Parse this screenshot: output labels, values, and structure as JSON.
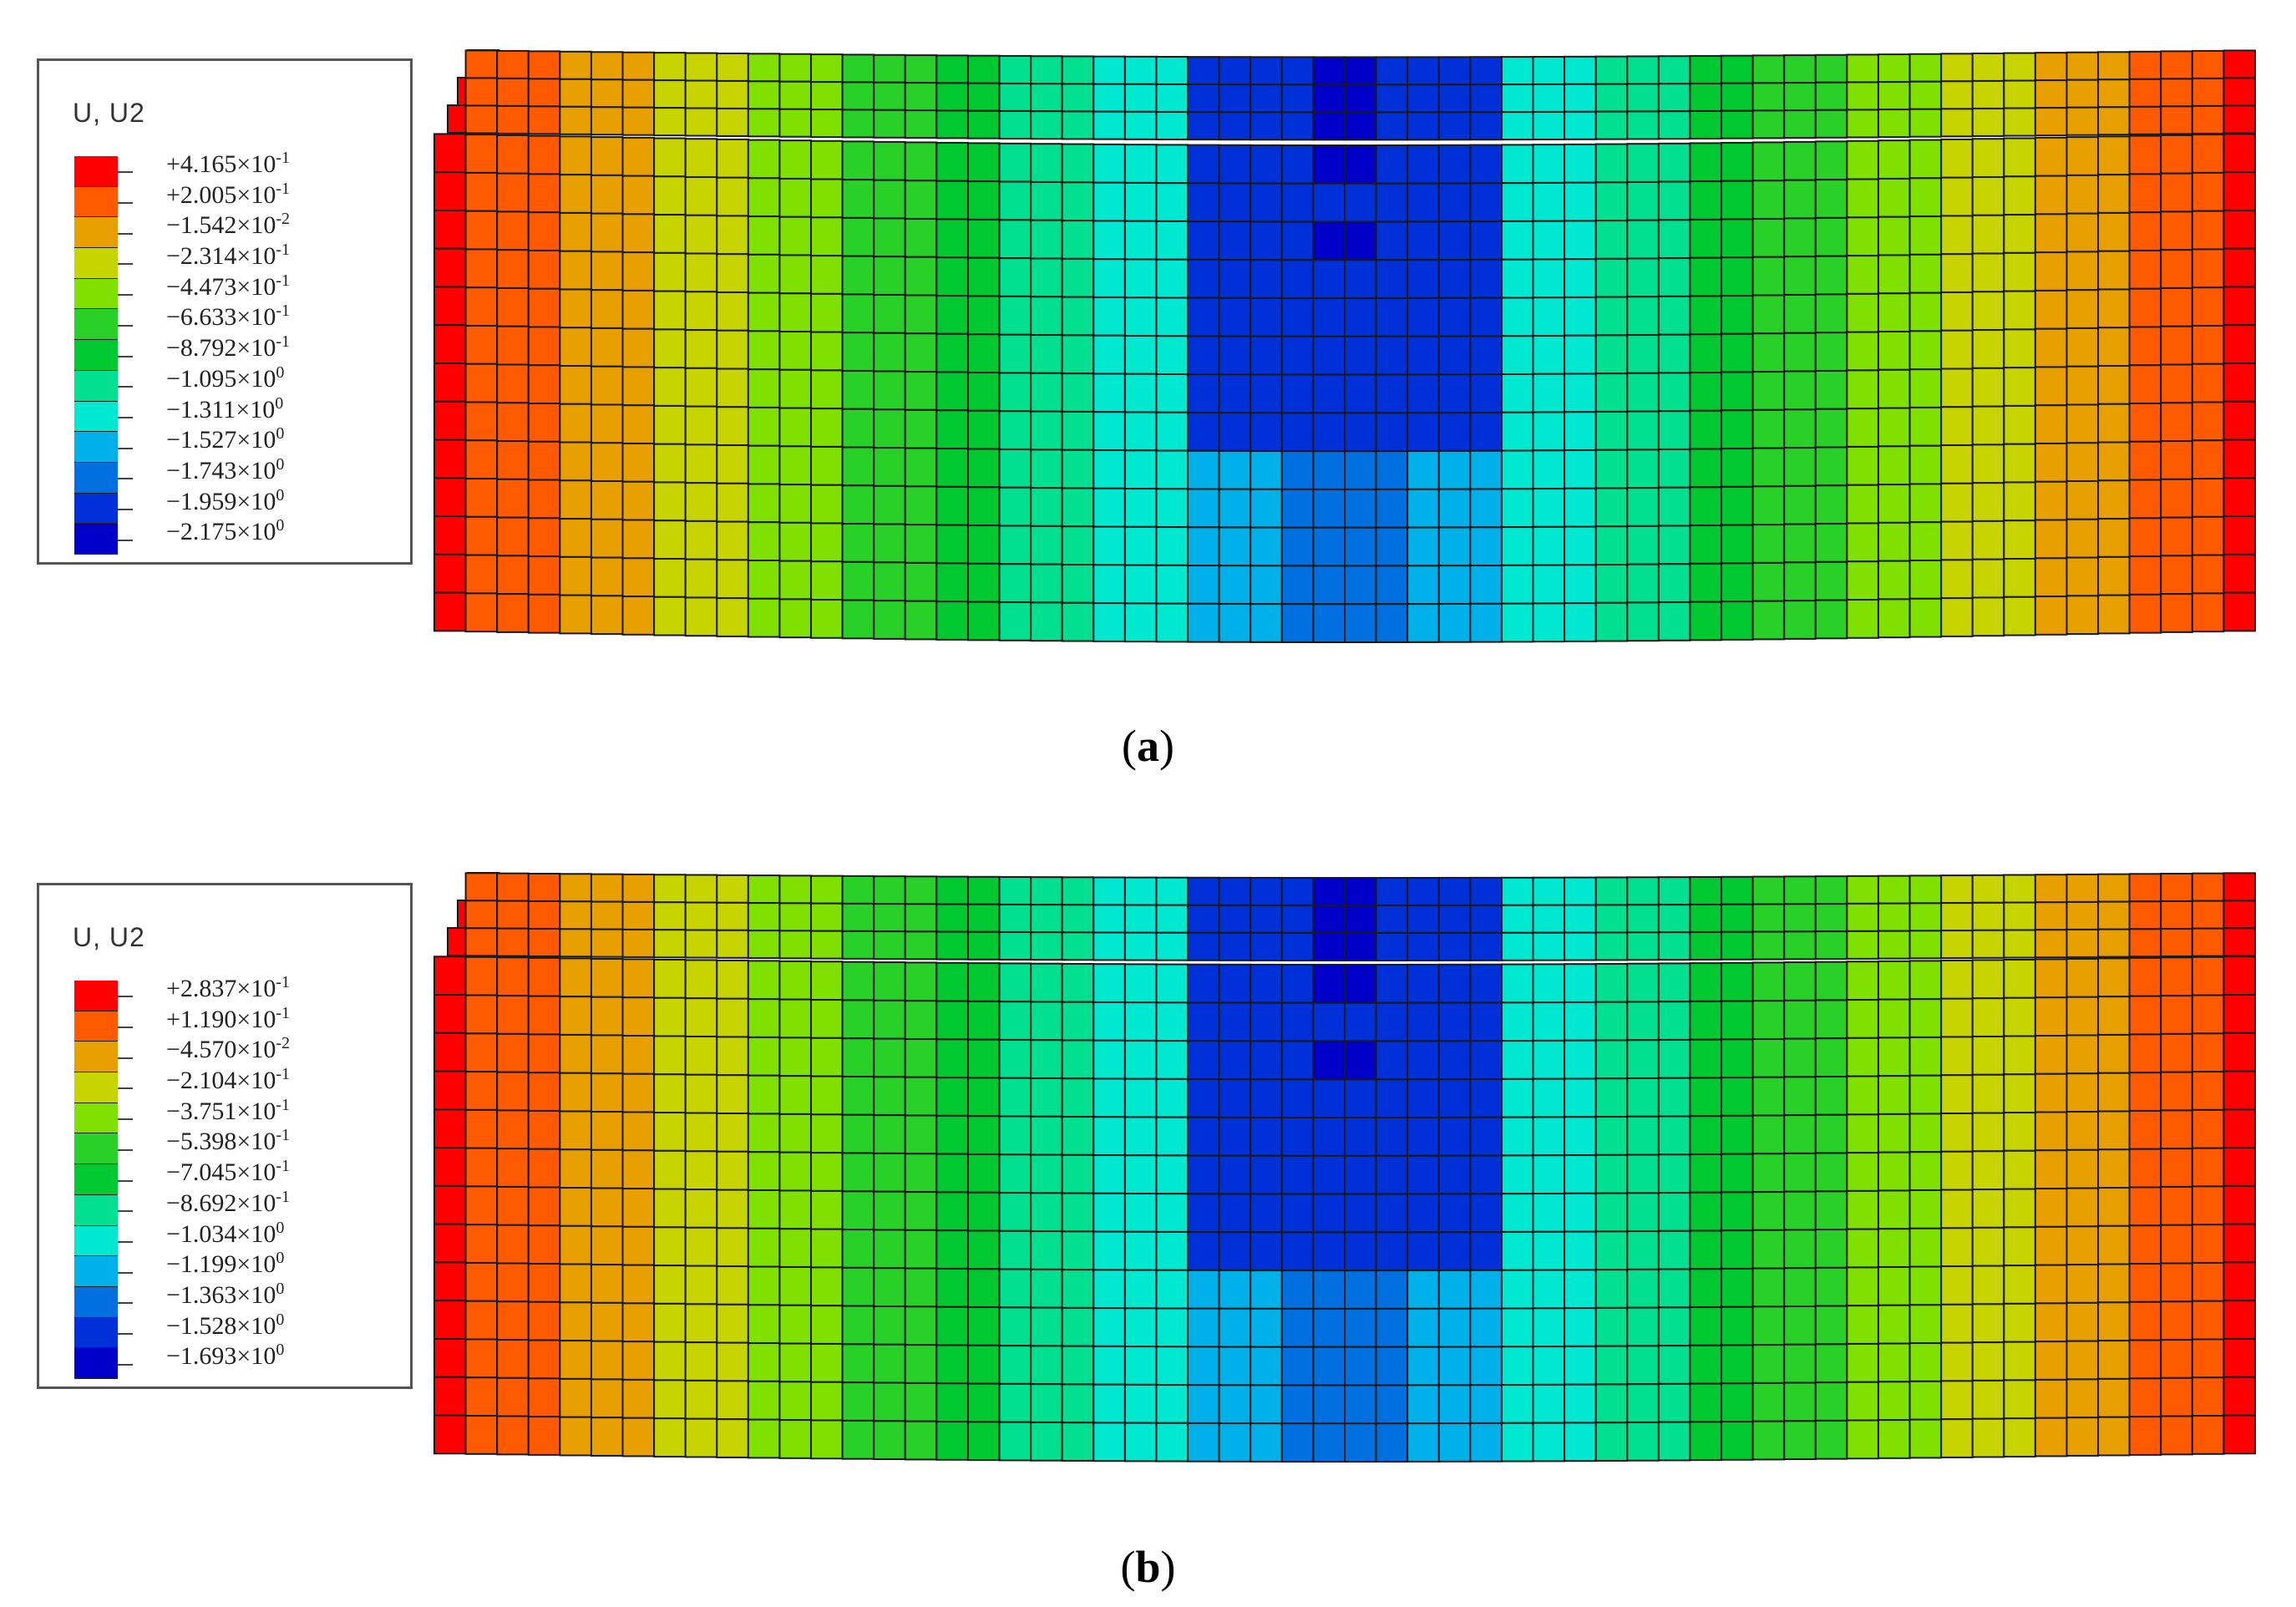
{
  "panels": [
    {
      "id": "a",
      "caption_letter": "a",
      "legend_title": "U, U2",
      "legend_colors": [
        "#ff0000",
        "#ff5a00",
        "#e8a000",
        "#c8d400",
        "#80e000",
        "#28d028",
        "#00c830",
        "#00e090",
        "#00e8d0",
        "#00b0e8",
        "#0070e0",
        "#0030d8",
        "#0000c8"
      ],
      "legend_values": [
        {
          "mantissa": "+4.165",
          "exponent": "-1"
        },
        {
          "mantissa": "+2.005",
          "exponent": "-1"
        },
        {
          "mantissa": "−1.542",
          "exponent": "-2"
        },
        {
          "mantissa": "−2.314",
          "exponent": "-1"
        },
        {
          "mantissa": "−4.473",
          "exponent": "-1"
        },
        {
          "mantissa": "−6.633",
          "exponent": "-1"
        },
        {
          "mantissa": "−8.792",
          "exponent": "-1"
        },
        {
          "mantissa": "−1.095",
          "exponent": "0"
        },
        {
          "mantissa": "−1.311",
          "exponent": "0"
        },
        {
          "mantissa": "−1.527",
          "exponent": "0"
        },
        {
          "mantissa": "−1.743",
          "exponent": "0"
        },
        {
          "mantissa": "−1.959",
          "exponent": "0"
        },
        {
          "mantissa": "−2.175",
          "exponent": "0"
        }
      ]
    },
    {
      "id": "b",
      "caption_letter": "b",
      "legend_title": "U, U2",
      "legend_colors": [
        "#ff0000",
        "#ff5a00",
        "#e8a000",
        "#c8d400",
        "#80e000",
        "#28d028",
        "#00c830",
        "#00e090",
        "#00e8d0",
        "#00b0e8",
        "#0070e0",
        "#0030d8",
        "#0000c8"
      ],
      "legend_values": [
        {
          "mantissa": "+2.837",
          "exponent": "-1"
        },
        {
          "mantissa": "+1.190",
          "exponent": "-1"
        },
        {
          "mantissa": "−4.570",
          "exponent": "-2"
        },
        {
          "mantissa": "−2.104",
          "exponent": "-1"
        },
        {
          "mantissa": "−3.751",
          "exponent": "-1"
        },
        {
          "mantissa": "−5.398",
          "exponent": "-1"
        },
        {
          "mantissa": "−7.045",
          "exponent": "-1"
        },
        {
          "mantissa": "−8.692",
          "exponent": "-1"
        },
        {
          "mantissa": "−1.034",
          "exponent": "0"
        },
        {
          "mantissa": "−1.199",
          "exponent": "0"
        },
        {
          "mantissa": "−1.363",
          "exponent": "0"
        },
        {
          "mantissa": "−1.528",
          "exponent": "0"
        },
        {
          "mantissa": "−1.693",
          "exponent": "0"
        }
      ]
    }
  ]
}
